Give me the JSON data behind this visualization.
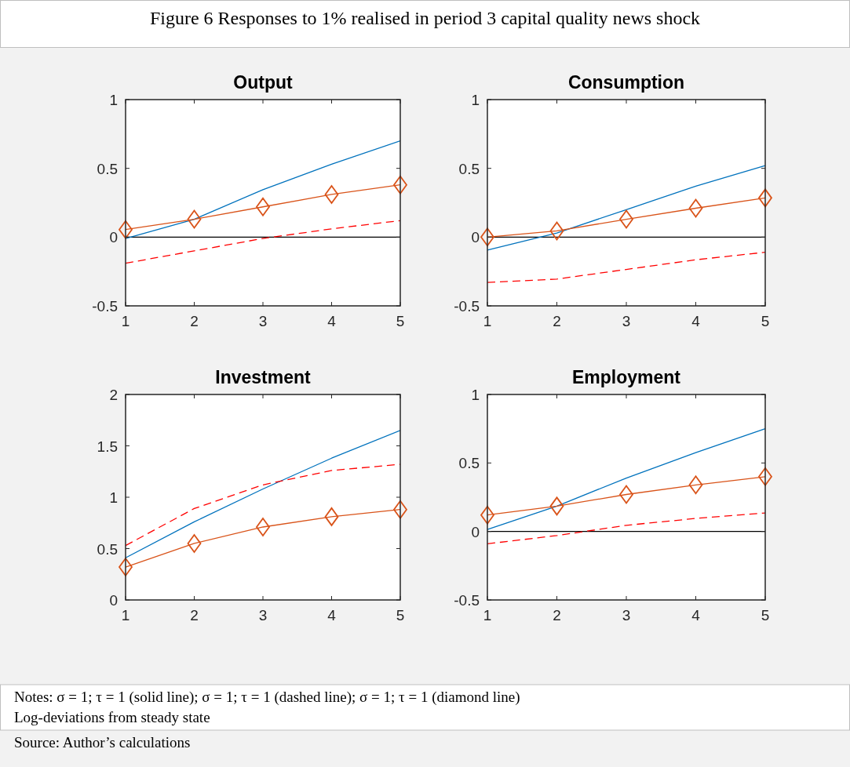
{
  "chart_data": [
    {
      "type": "other",
      "title": "Figure 6 Responses to 1% realised in period 3 capital quality news shock"
    },
    {
      "type": "line",
      "title": "Output",
      "x": [
        1,
        2,
        3,
        4,
        5
      ],
      "xlim": [
        1,
        5
      ],
      "xticks": [
        1,
        2,
        3,
        4,
        5
      ],
      "ylim": [
        -0.5,
        1
      ],
      "yticks": [
        -0.5,
        0,
        0.5,
        1
      ],
      "ref_lines": [
        {
          "axis": "y",
          "value": 0,
          "color": "#000000"
        }
      ],
      "series": [
        {
          "color": "#0072bd",
          "line_style": "solid",
          "marker": "none",
          "values": [
            -0.01,
            0.13,
            0.345,
            0.53,
            0.7
          ]
        },
        {
          "color": "#ff0000",
          "line_style": "dashed",
          "marker": "none",
          "values": [
            -0.19,
            -0.1,
            -0.01,
            0.06,
            0.12
          ]
        },
        {
          "color": "#d95319",
          "line_style": "solid",
          "marker": "diamond",
          "values": [
            0.055,
            0.13,
            0.22,
            0.31,
            0.38
          ]
        }
      ]
    },
    {
      "type": "line",
      "title": "Consumption",
      "x": [
        1,
        2,
        3,
        4,
        5
      ],
      "xlim": [
        1,
        5
      ],
      "xticks": [
        1,
        2,
        3,
        4,
        5
      ],
      "ylim": [
        -0.5,
        1
      ],
      "yticks": [
        -0.5,
        0,
        0.5,
        1
      ],
      "ref_lines": [
        {
          "axis": "y",
          "value": 0,
          "color": "#000000"
        }
      ],
      "series": [
        {
          "color": "#0072bd",
          "line_style": "solid",
          "marker": "none",
          "values": [
            -0.095,
            0.03,
            0.2,
            0.37,
            0.52
          ]
        },
        {
          "color": "#ff0000",
          "line_style": "dashed",
          "marker": "none",
          "values": [
            -0.33,
            -0.305,
            -0.235,
            -0.165,
            -0.11
          ]
        },
        {
          "color": "#d95319",
          "line_style": "solid",
          "marker": "diamond",
          "values": [
            0,
            0.045,
            0.13,
            0.21,
            0.285
          ]
        }
      ]
    },
    {
      "type": "line",
      "title": "Investment",
      "x": [
        1,
        2,
        3,
        4,
        5
      ],
      "xlim": [
        1,
        5
      ],
      "xticks": [
        1,
        2,
        3,
        4,
        5
      ],
      "ylim": [
        0,
        2
      ],
      "yticks": [
        0,
        0.5,
        1,
        1.5,
        2
      ],
      "series": [
        {
          "color": "#0072bd",
          "line_style": "solid",
          "marker": "none",
          "values": [
            0.41,
            0.76,
            1.08,
            1.38,
            1.65
          ]
        },
        {
          "color": "#ff0000",
          "line_style": "dashed",
          "marker": "none",
          "values": [
            0.53,
            0.89,
            1.12,
            1.26,
            1.32
          ]
        },
        {
          "color": "#d95319",
          "line_style": "solid",
          "marker": "diamond",
          "values": [
            0.32,
            0.55,
            0.71,
            0.81,
            0.88
          ]
        }
      ]
    },
    {
      "type": "line",
      "title": "Employment",
      "x": [
        1,
        2,
        3,
        4,
        5
      ],
      "xlim": [
        1,
        5
      ],
      "xticks": [
        1,
        2,
        3,
        4,
        5
      ],
      "ylim": [
        -0.5,
        1
      ],
      "yticks": [
        -0.5,
        0,
        0.5,
        1
      ],
      "ref_lines": [
        {
          "axis": "y",
          "value": 0,
          "color": "#000000"
        }
      ],
      "series": [
        {
          "color": "#0072bd",
          "line_style": "solid",
          "marker": "none",
          "values": [
            0.015,
            0.185,
            0.39,
            0.575,
            0.75
          ]
        },
        {
          "color": "#ff0000",
          "line_style": "dashed",
          "marker": "none",
          "values": [
            -0.09,
            -0.03,
            0.045,
            0.095,
            0.135
          ]
        },
        {
          "color": "#d95319",
          "line_style": "solid",
          "marker": "diamond",
          "values": [
            0.12,
            0.185,
            0.27,
            0.34,
            0.4
          ]
        }
      ]
    },
    {
      "type": "other",
      "annotations": [
        "Notes: σ = 1; τ = 1 (solid line); σ = 1; τ = 1 (dashed line); σ = 1; τ = 1 (diamond line)",
        "Log-deviations from steady state",
        "Source: Author’s calculations"
      ]
    }
  ]
}
